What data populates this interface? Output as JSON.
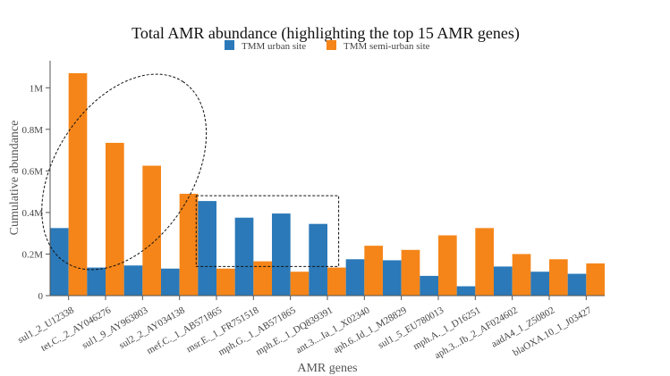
{
  "chart_data": {
    "type": "bar",
    "title": "Total AMR abundance (highlighting the top 15 AMR genes)",
    "xlabel": "AMR genes",
    "ylabel": "Cumulative abundance",
    "ylim": [
      0,
      1130000
    ],
    "yticks": [
      0,
      200000,
      400000,
      600000,
      800000,
      1000000
    ],
    "ytick_labels": [
      "0",
      "0.2M",
      "0.4M",
      "0.6M",
      "0.8M",
      "1M"
    ],
    "grid": false,
    "legend_position": "top",
    "categories": [
      "sul1_2_U12338",
      "tet.C._2_AY046276",
      "sul1_9_AY963803",
      "sul2_2_AY034138",
      "mef.C._1_AB571865",
      "msr.E._1_FR751518",
      "mph.G._1_AB571865",
      "mph.E._1_DQ839391",
      "ant.3....Ia_1_X02340",
      "aph.6..Id_1_M28829",
      "sul1_5_EU780013",
      "mph.A._1_D16251",
      "aph.3...Ib_2_AF024602",
      "aadA4_1_Z50802",
      "blaOXA.10_1_J03427"
    ],
    "series": [
      {
        "name": "TMM urban site",
        "color": "#2b79b8",
        "values": [
          325000,
          135000,
          145000,
          130000,
          455000,
          375000,
          395000,
          345000,
          175000,
          170000,
          95000,
          45000,
          140000,
          115000,
          105000
        ]
      },
      {
        "name": "TMM semi-urban site",
        "color": "#f58519",
        "values": [
          1070000,
          735000,
          625000,
          490000,
          130000,
          165000,
          115000,
          135000,
          240000,
          220000,
          290000,
          325000,
          200000,
          175000,
          155000
        ]
      }
    ],
    "annotations": [
      {
        "shape": "ellipse",
        "style": "dashed",
        "spans": [
          "sul1_2_U12338",
          "sul2_2_AY034138"
        ]
      },
      {
        "shape": "rectangle",
        "style": "dashed",
        "spans": [
          "mef.C._1_AB571865",
          "mph.E._1_DQ839391"
        ]
      }
    ]
  }
}
